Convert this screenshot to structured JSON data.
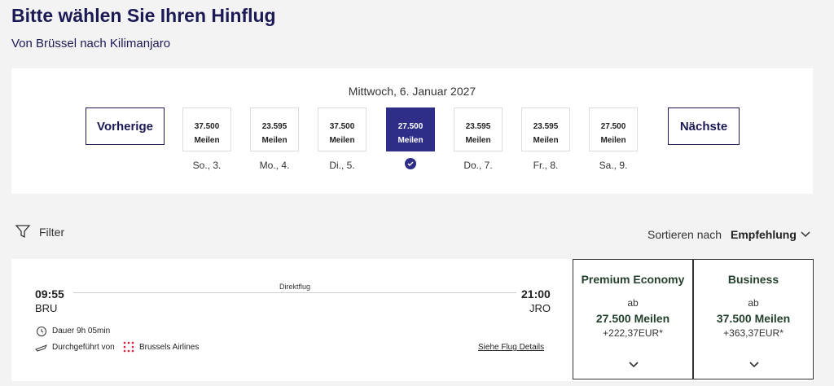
{
  "header": {
    "title": "Bitte wählen Sie Ihren Hinflug",
    "subtitle": "Von Brüssel nach Kilimanjaro"
  },
  "dates": {
    "current": "Mittwoch, 6. Januar 2027",
    "prev": "Vorherige",
    "next": "Nächste",
    "days": [
      {
        "price": "37.500",
        "unit": "Meilen",
        "label": "So., 3."
      },
      {
        "price": "23.595",
        "unit": "Meilen",
        "label": "Mo., 4."
      },
      {
        "price": "37.500",
        "unit": "Meilen",
        "label": "Di., 5."
      },
      {
        "price": "27.500",
        "unit": "Meilen",
        "selected": true
      },
      {
        "price": "23.595",
        "unit": "Meilen",
        "label": "Do., 7."
      },
      {
        "price": "23.595",
        "unit": "Meilen",
        "label": "Fr., 8."
      },
      {
        "price": "27.500",
        "unit": "Meilen",
        "label": "Sa., 9."
      }
    ]
  },
  "toolbar": {
    "filter": "Filter",
    "sort_label": "Sortieren nach",
    "sort_value": "Empfehlung"
  },
  "flight": {
    "depart_time": "09:55",
    "depart_airport": "BRU",
    "arrive_time": "21:00",
    "arrive_airport": "JRO",
    "type": "Direktflug",
    "duration": "Dauer 9h 05min",
    "operated": "Durchgeführt von",
    "airline": "Brussels Airlines",
    "details": "Siehe Flug Details",
    "fares": [
      {
        "name": "Premium Economy",
        "from": "ab",
        "miles": "27.500 Meilen",
        "price": "+222,37EUR*"
      },
      {
        "name": "Business",
        "from": "ab",
        "miles": "37.500 Meilen",
        "price": "+363,37EUR*"
      }
    ]
  }
}
